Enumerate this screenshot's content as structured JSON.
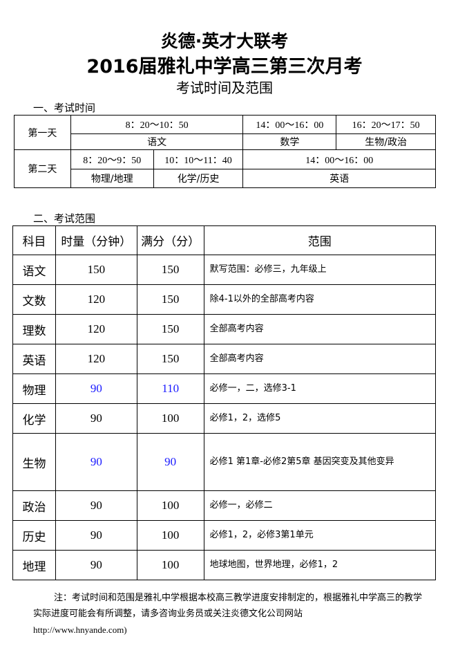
{
  "title1": "炎德·英才大联考",
  "title2": "2016届雅礼中学高三第三次月考",
  "title3": "考试时间及范围",
  "section1": "一、考试时间",
  "schedule": {
    "day1": {
      "label": "第一天",
      "times": [
        "8：20～10：50",
        "14：00～16：00",
        "16：20～17：50"
      ],
      "subjects": [
        "语文",
        "数学",
        "生物/政治"
      ]
    },
    "day2": {
      "label": "第二天",
      "times": [
        "8：20～9：50",
        "10：10～11：40",
        "14：00～16：00"
      ],
      "subjects": [
        "物理/地理",
        "化学/历史",
        "英语"
      ]
    }
  },
  "section2": "二、考试范围",
  "scope": {
    "headers": [
      "科目",
      "时量（分钟）",
      "满分（分）",
      "范围"
    ],
    "rows": [
      {
        "subject": "语文",
        "time": "150",
        "score": "150",
        "range": "默写范围：必修三，九年级上"
      },
      {
        "subject": "文数",
        "time": "120",
        "score": "150",
        "range": "除4-1以外的全部高考内容"
      },
      {
        "subject": "理数",
        "time": "120",
        "score": "150",
        "range": "全部高考内容"
      },
      {
        "subject": "英语",
        "time": "120",
        "score": "150",
        "range": "全部高考内容"
      },
      {
        "subject": "物理",
        "time": "90",
        "score": "110",
        "range": "必修一，二，选修3-1",
        "highlight": "#1a1aff"
      },
      {
        "subject": "化学",
        "time": "90",
        "score": "100",
        "range": "必修1，2，选修5"
      },
      {
        "subject": "生物",
        "time": "90",
        "score": "90",
        "range": "必修1 第1章-必修2第5章 基因突变及其他变异",
        "highlight": "#1a1aff"
      },
      {
        "subject": "政治",
        "time": "90",
        "score": "100",
        "range": "必修一，必修二"
      },
      {
        "subject": "历史",
        "time": "90",
        "score": "100",
        "range": "必修1，2，必修3第1单元"
      },
      {
        "subject": "地理",
        "time": "90",
        "score": "100",
        "range": "地球地图，世界地理，必修1，2"
      }
    ]
  },
  "note": "注：考试时间和范围是雅礼中学根据本校高三教学进度安排制定的，根据雅礼中学高三的教学实际进度可能会有所调整，请多咨询业务员或关注炎德文化公司网站",
  "note_url": "http://www.hnyande.com)"
}
